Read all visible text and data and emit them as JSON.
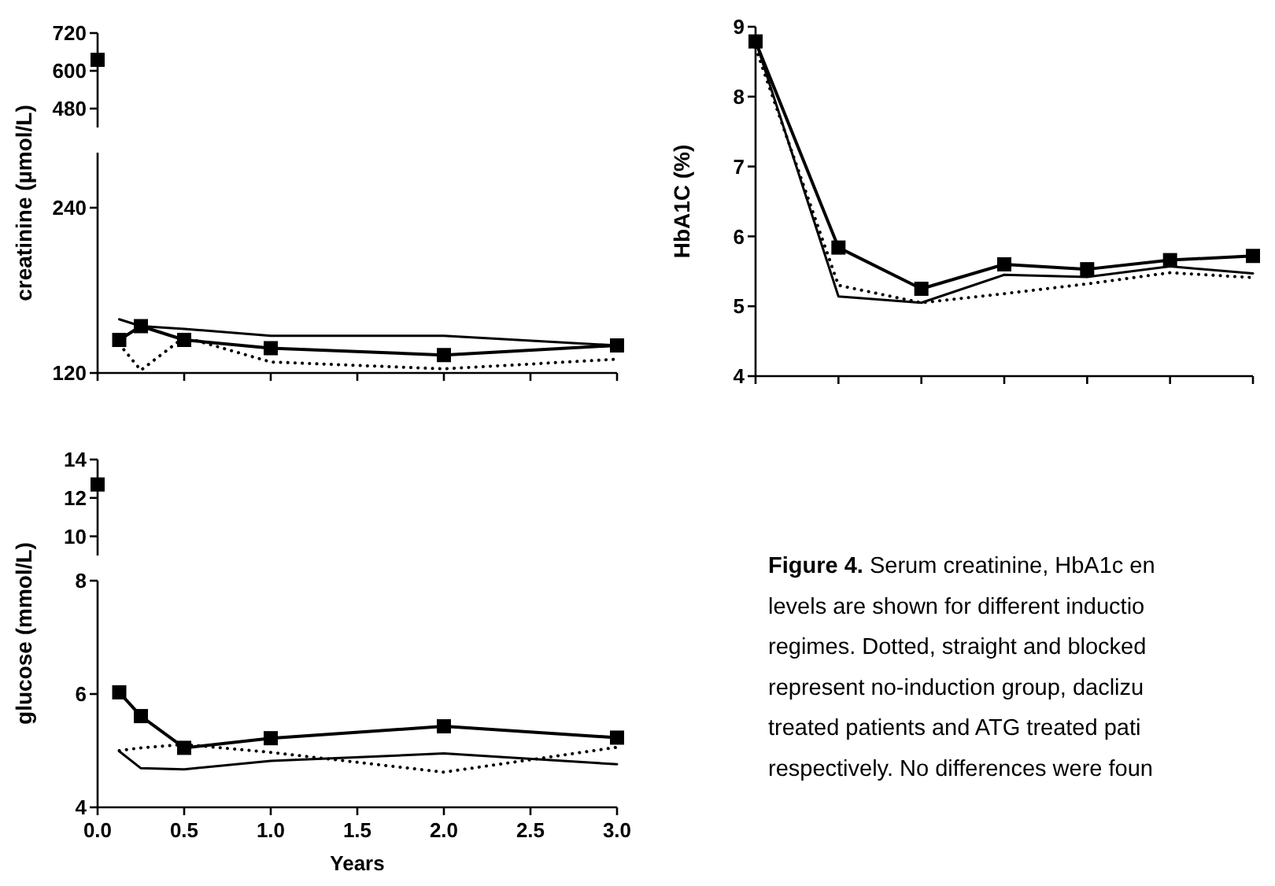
{
  "chart_data": [
    {
      "type": "line",
      "xlim": [
        0,
        3
      ],
      "ylim": [
        420,
        720
      ],
      "yticks": [
        480,
        600,
        720
      ],
      "tick_labels": "y",
      "series": [
        {
          "x": [
            0
          ],
          "values": [
            635
          ],
          "color": "#000000",
          "marker": "square",
          "line_style": "solid"
        }
      ]
    },
    {
      "type": "line",
      "ylabel": "creatinine (µmol/L)",
      "xlim": [
        0,
        3
      ],
      "xticks": [
        0,
        0.5,
        1,
        1.5,
        2,
        2.5,
        3
      ],
      "ylim": [
        120,
        280
      ],
      "yticks": [
        120,
        240
      ],
      "tick_labels": "y",
      "x": [
        0.125,
        0.25,
        0.5,
        1,
        2,
        3
      ],
      "series": [
        {
          "values": [
            141,
            122,
            146,
            128,
            123,
            130
          ],
          "color": "#000000",
          "marker": "none",
          "line_style": "dotted"
        },
        {
          "values": [
            159,
            154,
            152,
            147,
            147,
            140
          ],
          "color": "#000000",
          "marker": "none",
          "line_style": "solid"
        },
        {
          "values": [
            144,
            154,
            144,
            138,
            133,
            140
          ],
          "color": "#000000",
          "marker": "square",
          "line_style": "solid"
        }
      ]
    },
    {
      "type": "line",
      "ylabel": "HbA1C (%)",
      "categories": [
        null,
        null,
        null,
        null,
        null,
        null,
        null
      ],
      "ylim": [
        4,
        9
      ],
      "yticks": [
        4,
        5,
        6,
        7,
        8,
        9
      ],
      "series": [
        {
          "values": [
            8.7,
            5.3,
            5.05,
            5.18,
            5.32,
            5.48,
            5.41
          ],
          "color": "#000000",
          "marker": "none",
          "line_style": "dotted"
        },
        {
          "values": [
            8.8,
            5.14,
            5.05,
            5.45,
            5.42,
            5.57,
            5.47
          ],
          "color": "#000000",
          "marker": "none",
          "line_style": "solid"
        },
        {
          "values": [
            8.79,
            5.84,
            5.25,
            5.6,
            5.53,
            5.66,
            5.72
          ],
          "color": "#000000",
          "marker": "square",
          "line_style": "solid"
        }
      ]
    },
    {
      "type": "line",
      "xlim": [
        0,
        3
      ],
      "ylim": [
        9,
        14
      ],
      "yticks": [
        10,
        12,
        14
      ],
      "tick_labels": "y",
      "series": [
        {
          "x": [
            0
          ],
          "values": [
            12.7
          ],
          "color": "#000000",
          "marker": "square",
          "line_style": "solid"
        }
      ]
    },
    {
      "type": "line",
      "ylabel": "glucose (mmol/L)",
      "xlabel": "Years",
      "xlim": [
        0,
        3
      ],
      "xticks": [
        {
          "value": 0,
          "label": "0.0"
        },
        {
          "value": 0.5,
          "label": "0.5"
        },
        {
          "value": 1,
          "label": "1.0"
        },
        {
          "value": 1.5,
          "label": "1.5"
        },
        {
          "value": 2,
          "label": "2.0"
        },
        {
          "value": 2.5,
          "label": "2.5"
        },
        {
          "value": 3,
          "label": "3.0"
        }
      ],
      "ylim": [
        4,
        8
      ],
      "yticks": [
        4,
        6,
        8
      ],
      "x": [
        0.125,
        0.25,
        0.5,
        1,
        2,
        3
      ],
      "series": [
        {
          "values": [
            5.0,
            5.05,
            5.11,
            4.97,
            4.62,
            5.06
          ],
          "color": "#000000",
          "marker": "none",
          "line_style": "dotted"
        },
        {
          "values": [
            4.99,
            4.69,
            4.67,
            4.82,
            4.95,
            4.76
          ],
          "color": "#000000",
          "marker": "none",
          "line_style": "solid"
        },
        {
          "values": [
            6.03,
            5.61,
            5.05,
            5.22,
            5.43,
            5.23
          ],
          "color": "#000000",
          "marker": "square",
          "line_style": "solid"
        }
      ]
    },
    {
      "type": "other",
      "title": "Figure 4.",
      "annotations": [
        "Serum creatinine, HbA1c en",
        "levels are shown for different inductio",
        "regimes. Dotted, straight and blocked",
        "represent no-induction group, daclizu",
        "treated patients and ATG treated pati",
        "respectively. No differences were foun"
      ]
    }
  ]
}
